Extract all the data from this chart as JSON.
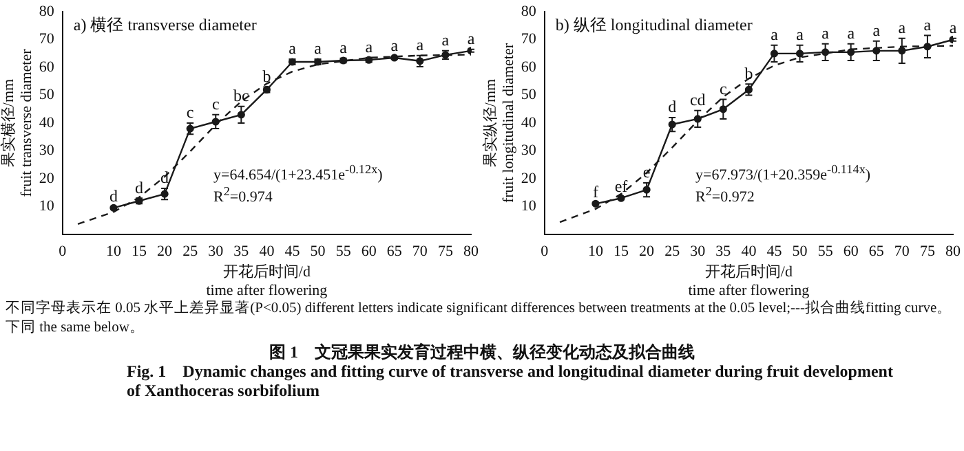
{
  "chart_data": [
    {
      "type": "line",
      "title": "a) 横径 transverse diameter",
      "xlabel": "开花后时间/d\ntime after flowering",
      "ylabel": "果实横径/mm\nfruit transverse diameter",
      "xlim": [
        0,
        80
      ],
      "xticks": [
        0,
        10,
        15,
        20,
        25,
        30,
        35,
        40,
        45,
        50,
        55,
        60,
        65,
        70,
        75,
        80
      ],
      "ylim": [
        0,
        80
      ],
      "yticks": [
        10,
        20,
        30,
        40,
        50,
        60,
        70,
        80
      ],
      "grid": false,
      "legend": false,
      "marker": "circle",
      "line_style": "solid",
      "x": [
        10,
        15,
        20,
        25,
        30,
        35,
        40,
        45,
        50,
        55,
        60,
        65,
        70,
        75,
        80
      ],
      "series": [
        {
          "color": "#1a1a1a",
          "values": [
            9.5,
            12,
            14.5,
            38,
            40.5,
            43,
            52,
            62,
            62,
            62.5,
            62.7,
            63.5,
            62.3,
            64.5,
            66
          ],
          "errors": [
            0.5,
            1,
            2,
            2,
            2.5,
            3,
            1,
            1,
            1,
            0.8,
            0.8,
            0.5,
            2,
            1.5,
            0.5
          ]
        },
        {
          "type": "line",
          "color": "#1a1a1a",
          "marker": "none",
          "line_style": "dashed",
          "x": [
            3,
            10,
            15,
            20,
            25,
            30,
            35,
            40,
            45,
            50,
            60,
            70,
            80
          ],
          "values": [
            3.7,
            8.0,
            13.3,
            20.7,
            29.8,
            39.4,
            47.8,
            54.2,
            58.5,
            61.1,
            63.5,
            64.3,
            64.6
          ]
        }
      ],
      "annotations": [
        {
          "text": "d",
          "x": 10,
          "y": 10
        },
        {
          "text": "d",
          "x": 15,
          "y": 13
        },
        {
          "text": "d",
          "x": 20,
          "y": 16.5
        },
        {
          "text": "c",
          "x": 25,
          "y": 40
        },
        {
          "text": "c",
          "x": 30,
          "y": 43
        },
        {
          "text": "bc",
          "x": 35,
          "y": 46
        },
        {
          "text": "b",
          "x": 40,
          "y": 53
        },
        {
          "text": "a",
          "x": 45,
          "y": 63
        },
        {
          "text": "a",
          "x": 50,
          "y": 63
        },
        {
          "text": "a",
          "x": 55,
          "y": 63.3
        },
        {
          "text": "a",
          "x": 60,
          "y": 63.5
        },
        {
          "text": "a",
          "x": 65,
          "y": 64
        },
        {
          "text": "a",
          "x": 70,
          "y": 64.3
        },
        {
          "text": "a",
          "x": 75,
          "y": 66
        },
        {
          "text": "a",
          "x": 80,
          "y": 66.5
        },
        "y=64.654/(1+23.451e$^{-0.12x}$)",
        "R$^{2}$=0.974",
        "不同字母表示在 0.05 水平上差异显著(P<0.05) different letters indicate significant differences between treatments at the 0.05 level;---拟合曲线fitting curve。下同 the same below。",
        "图 1　文冠果果实发育过程中横、纵径变化动态及拟合曲线",
        "Fig. 1　Dynamic changes and fitting curve of transverse and longitudinal diameter during fruit development of Xanthoceras sorbifolium"
      ]
    },
    {
      "type": "line",
      "title": "b) 纵径 longitudinal diameter",
      "xlabel": "开花后时间/d\ntime after flowering",
      "ylabel": "果实纵径/mm\nfruit longitudinal diameter",
      "xlim": [
        0,
        80
      ],
      "xticks": [
        0,
        10,
        15,
        20,
        25,
        30,
        35,
        40,
        45,
        50,
        55,
        60,
        65,
        70,
        75,
        80
      ],
      "ylim": [
        0,
        80
      ],
      "yticks": [
        10,
        20,
        30,
        40,
        50,
        60,
        70,
        80
      ],
      "grid": false,
      "legend": false,
      "marker": "circle",
      "line_style": "solid",
      "x": [
        10,
        15,
        20,
        25,
        30,
        35,
        40,
        45,
        50,
        55,
        60,
        65,
        70,
        75,
        80
      ],
      "series": [
        {
          "color": "#1a1a1a",
          "values": [
            11,
            13,
            16,
            39.5,
            41.5,
            45,
            52,
            65,
            65,
            65.5,
            65.5,
            66,
            66,
            67.5,
            70
          ],
          "errors": [
            0.5,
            0.5,
            2.5,
            2.5,
            3,
            3.5,
            2,
            3,
            3,
            3,
            3,
            3.5,
            4.5,
            4,
            0.5
          ]
        },
        {
          "type": "line",
          "color": "#1a1a1a",
          "marker": "none",
          "line_style": "dashed",
          "x": [
            3,
            10,
            15,
            20,
            25,
            30,
            35,
            40,
            45,
            50,
            60,
            70,
            80
          ],
          "values": [
            4.4,
            9.1,
            14.5,
            22.1,
            31.2,
            40.8,
            49.4,
            56.0,
            60.7,
            63.6,
            66.5,
            67.5,
            67.8
          ]
        }
      ],
      "annotations": [
        {
          "text": "f",
          "x": 10,
          "y": 11.5
        },
        {
          "text": "ef",
          "x": 15,
          "y": 13.5
        },
        {
          "text": "e",
          "x": 20,
          "y": 18.5
        },
        {
          "text": "d",
          "x": 25,
          "y": 42
        },
        {
          "text": "cd",
          "x": 30,
          "y": 44.5
        },
        {
          "text": "c",
          "x": 35,
          "y": 48.5
        },
        {
          "text": "b",
          "x": 40,
          "y": 54
        },
        {
          "text": "a",
          "x": 45,
          "y": 68
        },
        {
          "text": "a",
          "x": 50,
          "y": 68
        },
        {
          "text": "a",
          "x": 55,
          "y": 68.5
        },
        {
          "text": "a",
          "x": 60,
          "y": 68.5
        },
        {
          "text": "a",
          "x": 65,
          "y": 69.5
        },
        {
          "text": "a",
          "x": 70,
          "y": 70.5
        },
        {
          "text": "a",
          "x": 75,
          "y": 71.5
        },
        {
          "text": "a",
          "x": 80,
          "y": 70.5
        },
        "y=67.973/(1+20.359e$^{-0.114x}$)",
        "R$^{2}$=0.972"
      ]
    }
  ]
}
